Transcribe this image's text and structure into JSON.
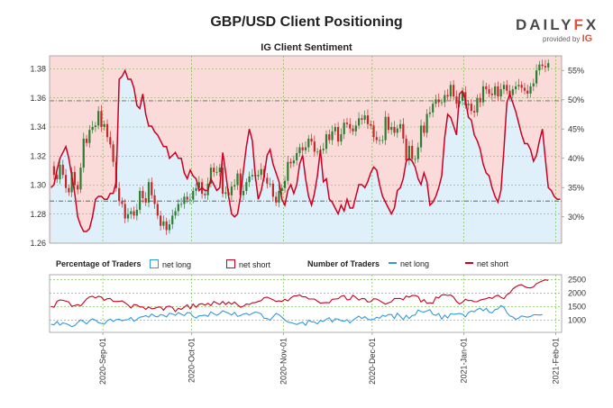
{
  "header": {
    "title": "GBP/USD Client Positioning",
    "brand_left": "DAILY",
    "brand_x": "F",
    "brand_right": "X",
    "provided_by": "provided by",
    "provider": "IG",
    "subtitle": "IG Client Sentiment"
  },
  "legend": {
    "pct_header": "Percentage of Traders",
    "pct_long": "net long",
    "pct_short": "net short",
    "num_header": "Number of Traders",
    "num_long": "net long",
    "num_short": "net short"
  },
  "colors": {
    "long": "#3399dd",
    "short": "#cc0022",
    "long_fill": "#dff0fa",
    "short_fill": "#fbdada",
    "candle_up": "#2e7d32",
    "candle_down": "#c62828",
    "grid": "#66bb33"
  },
  "chart_data": [
    {
      "type": "line",
      "title": "GBP/USD Client Positioning",
      "subtitle": "IG Client Sentiment",
      "y_left_ticks": [
        "1.26",
        "1.28",
        "1.30",
        "1.32",
        "1.34",
        "1.36",
        "1.38"
      ],
      "y_left_range": [
        1.26,
        1.389
      ],
      "y_right_ticks": [
        "30%",
        "35%",
        "40%",
        "45%",
        "50%",
        "55%"
      ],
      "y_right_range": [
        25.5,
        57.5
      ],
      "x_ticks": [
        "2020-Sep-01",
        "2020-Oct-01",
        "2020-Nov-01",
        "2020-Dec-01",
        "2021-Jan-01",
        "2021-Feb-01"
      ],
      "days": 165,
      "x_tick_days": [
        18,
        48,
        79,
        109,
        140,
        171
      ],
      "grid": true,
      "reference_lines": [
        {
          "axis": "left",
          "value": 1.358
        },
        {
          "axis": "left",
          "value": 1.289
        }
      ],
      "price_closes": [
        1.313,
        1.307,
        1.304,
        1.314,
        1.307,
        1.298,
        1.295,
        1.309,
        1.3,
        1.297,
        1.312,
        1.332,
        1.329,
        1.338,
        1.34,
        1.341,
        1.351,
        1.34,
        1.342,
        1.333,
        1.328,
        1.316,
        1.298,
        1.289,
        1.287,
        1.277,
        1.28,
        1.282,
        1.279,
        1.283,
        1.296,
        1.291,
        1.288,
        1.302,
        1.293,
        1.287,
        1.279,
        1.272,
        1.275,
        1.269,
        1.273,
        1.279,
        1.282,
        1.287,
        1.287,
        1.292,
        1.29,
        1.29,
        1.296,
        1.298,
        1.302,
        1.294,
        1.293,
        1.301,
        1.312,
        1.309,
        1.309,
        1.312,
        1.294,
        1.295,
        1.293,
        1.299,
        1.3,
        1.308,
        1.293,
        1.296,
        1.302,
        1.306,
        1.307,
        1.306,
        1.307,
        1.311,
        1.305,
        1.301,
        1.301,
        1.292,
        1.288,
        1.296,
        1.298,
        1.303,
        1.316,
        1.315,
        1.317,
        1.322,
        1.326,
        1.324,
        1.326,
        1.332,
        1.33,
        1.323,
        1.323,
        1.324,
        1.325,
        1.335,
        1.331,
        1.337,
        1.34,
        1.33,
        1.335,
        1.343,
        1.342,
        1.339,
        1.337,
        1.341,
        1.346,
        1.345,
        1.348,
        1.342,
        1.341,
        1.333,
        1.331,
        1.331,
        1.331,
        1.347,
        1.338,
        1.34,
        1.336,
        1.339,
        1.342,
        1.332,
        1.317,
        1.327,
        1.318,
        1.318,
        1.326,
        1.341,
        1.336,
        1.349,
        1.35,
        1.356,
        1.359,
        1.357,
        1.357,
        1.362,
        1.361,
        1.369,
        1.361,
        1.356,
        1.358,
        1.364,
        1.355,
        1.356,
        1.351,
        1.35,
        1.36,
        1.357,
        1.368,
        1.366,
        1.363,
        1.362,
        1.368,
        1.361,
        1.366,
        1.369,
        1.365,
        1.362,
        1.366,
        1.368,
        1.369,
        1.367,
        1.365,
        1.363,
        1.368,
        1.37,
        1.379,
        1.383,
        1.382,
        1.381,
        1.384
      ],
      "pct_net_short": [
        35,
        35.5,
        38,
        40,
        41,
        42,
        40,
        37,
        34,
        30,
        28.5,
        27.5,
        27.5,
        28,
        30,
        33,
        33.5,
        33.5,
        33,
        33,
        34,
        34,
        36,
        53.5,
        54,
        55,
        53.5,
        53.5,
        52,
        49,
        48.5,
        51,
        47.5,
        45.5,
        45.5,
        44.5,
        44,
        43,
        42,
        42,
        40,
        40.5,
        41,
        40,
        40,
        37.5,
        36.5,
        38,
        37,
        36.5,
        34.5,
        35,
        34.5,
        34.5,
        36.5,
        35.5,
        34.5,
        35,
        41,
        37.5,
        33.5,
        30.5,
        30,
        30.5,
        33.5,
        38,
        42,
        45,
        43,
        37,
        33,
        34.5,
        37,
        40.5,
        41.5,
        39,
        37.5,
        36,
        33,
        32,
        34.5,
        35.5,
        34,
        35.5,
        39,
        40.5,
        36.5,
        33.5,
        32,
        34,
        37,
        41.5,
        36,
        36.5,
        33,
        32.5,
        31.5,
        30.5,
        32,
        31,
        33,
        31.5,
        31.5,
        33.5,
        35.5,
        35.5,
        35,
        36,
        37.5,
        38.5,
        38,
        35.5,
        33.5,
        32.5,
        31.5,
        30.5,
        31.5,
        34.5,
        35,
        36.5,
        39.5,
        40,
        39.5,
        38.5,
        36.5,
        35.5,
        37.5,
        36,
        32,
        32.5,
        33.5,
        35,
        37,
        43.5,
        47.5,
        47,
        45.5,
        44,
        51,
        51.5,
        50,
        47,
        46.5,
        44,
        43,
        41.5,
        39,
        37.5,
        37,
        35,
        33.5,
        32.5,
        34.5,
        41.5,
        49.5,
        51,
        49.5,
        48,
        46,
        44,
        42.5,
        42.5,
        41.5,
        39.5,
        40.5,
        43,
        45,
        40,
        35,
        34.5,
        33.5,
        33,
        33
      ],
      "y_bottom_ticks": [
        "1000",
        "1500",
        "2000",
        "2500"
      ],
      "y_bottom_range": [
        550,
        2680
      ],
      "long_counts": [
        850,
        830,
        950,
        820,
        900,
        870,
        830,
        760,
        800,
        920,
        1010,
        950,
        860,
        980,
        1050,
        1000,
        910,
        880,
        850,
        980,
        1040,
        950,
        1020,
        1040,
        980,
        1010,
        1020,
        1100,
        960,
        1030,
        1110,
        1130,
        1170,
        1110,
        1230,
        1150,
        1120,
        1210,
        1180,
        1120,
        1260,
        1230,
        1180,
        1280,
        1220,
        1170,
        1280,
        1270,
        1140,
        1080,
        1160,
        1170,
        1190,
        1140,
        1310,
        1240,
        1180,
        1250,
        1350,
        1300,
        1260,
        1190,
        1290,
        1140,
        1170,
        1230,
        1250,
        1190,
        1250,
        1300,
        1280,
        1230,
        1070,
        1060,
        1000,
        1130,
        1250,
        1200,
        1110,
        1010,
        930,
        910,
        880,
        840,
        890,
        930,
        810,
        1000,
        940,
        930,
        860,
        990,
        950,
        1040,
        1090,
        930,
        1050,
        1040,
        980,
        960,
        1020,
        900,
        1000,
        1080,
        1150,
        1060,
        1130,
        1040,
        1010,
        1030,
        1110,
        1070,
        1180,
        1140,
        1210,
        1210,
        1060,
        1260,
        1140,
        1020,
        1180,
        1060,
        1170,
        1190,
        1380,
        1320,
        1300,
        1340,
        1390,
        1210,
        1180,
        1250,
        1040,
        1190,
        1080,
        1240,
        1220,
        1230,
        1250,
        1220,
        1120,
        1280,
        1340,
        1310,
        1400,
        1440,
        1350,
        1440,
        1300,
        1270,
        1390,
        1420,
        1540,
        1480,
        1280,
        1160,
        1120,
        1030,
        1080,
        1160,
        1130,
        1110,
        1140,
        1200,
        1200,
        1190,
        1210
      ],
      "short_counts": [
        1510,
        1480,
        1690,
        1750,
        1730,
        1700,
        1670,
        1510,
        1540,
        1580,
        1530,
        1650,
        1780,
        1860,
        1880,
        1820,
        1880,
        1850,
        1730,
        1790,
        1800,
        1690,
        1690,
        1690,
        1710,
        1640,
        1560,
        1450,
        1580,
        1560,
        1490,
        1490,
        1400,
        1490,
        1420,
        1440,
        1480,
        1490,
        1370,
        1500,
        1520,
        1470,
        1320,
        1440,
        1400,
        1480,
        1570,
        1420,
        1600,
        1480,
        1590,
        1610,
        1560,
        1620,
        1540,
        1690,
        1630,
        1580,
        1690,
        1580,
        1670,
        1590,
        1670,
        1570,
        1480,
        1520,
        1600,
        1580,
        1640,
        1650,
        1690,
        1720,
        1830,
        1850,
        1800,
        1750,
        1690,
        1710,
        1690,
        1770,
        1710,
        1820,
        1890,
        1900,
        1930,
        1860,
        1860,
        1780,
        1780,
        1780,
        1700,
        1630,
        1640,
        1650,
        1640,
        1770,
        1780,
        1790,
        1880,
        1910,
        1750,
        1760,
        1920,
        1840,
        1740,
        1800,
        1790,
        1670,
        1680,
        1790,
        1780,
        1720,
        1650,
        1590,
        1640,
        1680,
        1800,
        1800,
        1800,
        1750,
        1890,
        1850,
        1910,
        1910,
        1870,
        1670,
        1760,
        1620,
        1640,
        1620,
        1850,
        1820,
        1930,
        1940,
        1910,
        1930,
        1850,
        1690,
        1600,
        1660,
        1770,
        1720,
        1730,
        1680,
        1680,
        1740,
        1770,
        1790,
        1840,
        1800,
        1880,
        1920,
        1840,
        1790,
        1940,
        2000,
        2150,
        2230,
        2290,
        2310,
        2240,
        2200,
        2190,
        2230,
        2350,
        2400,
        2450,
        2490,
        2470
      ]
    }
  ]
}
